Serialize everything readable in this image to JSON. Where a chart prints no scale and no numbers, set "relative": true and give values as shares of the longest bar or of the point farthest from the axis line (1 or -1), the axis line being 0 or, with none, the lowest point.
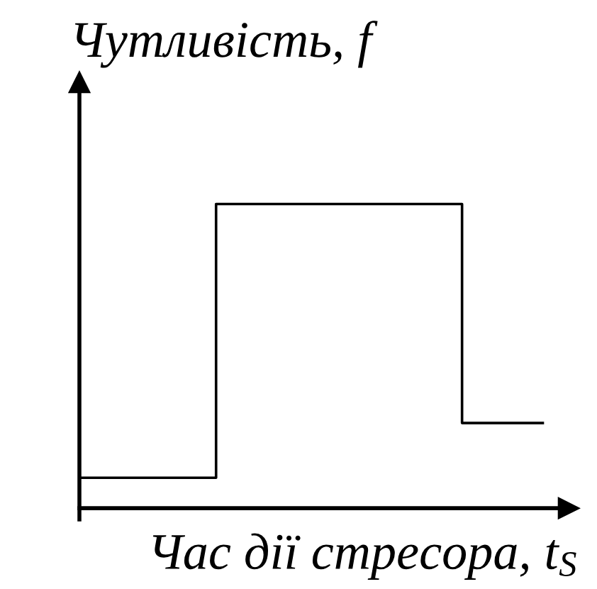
{
  "chart_data": {
    "type": "step",
    "xlabel": "Час дії стресора, t$_{S}$",
    "ylabel": "Чутливість, f",
    "relative": true,
    "tick_labels": false,
    "marker": "none",
    "line_style": "solid",
    "color": "#000000",
    "categories": [
      null,
      null,
      null,
      null,
      null,
      null,
      null,
      null,
      null,
      null,
      null,
      null,
      null,
      null,
      null,
      null,
      null,
      null
    ],
    "values": [
      0.1,
      0.1,
      0.1,
      0.1,
      0.1,
      1,
      1,
      1,
      1,
      1,
      1,
      1,
      1,
      1,
      0.28,
      0.28,
      0.28,
      0.28
    ]
  }
}
